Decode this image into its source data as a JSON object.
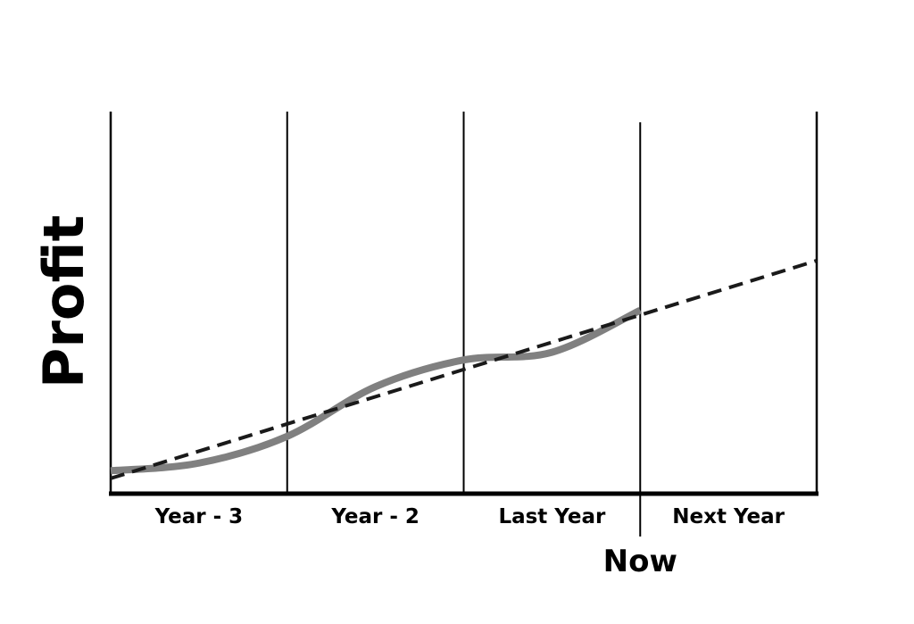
{
  "chart_data": {
    "type": "line",
    "title": "",
    "xlabel": "",
    "ylabel": "Profit",
    "categories": [
      "Year - 3",
      "Year - 2",
      "Last Year",
      "Next Year"
    ],
    "x_range": [
      0,
      4
    ],
    "now_marker": {
      "x": 3,
      "label": "Now"
    },
    "grid": "vertical dividers between periods",
    "series": [
      {
        "style": "solid",
        "color": "#808080",
        "points": [
          {
            "x": 0.0,
            "y": 0.06
          },
          {
            "x": 0.5,
            "y": 0.08
          },
          {
            "x": 1.0,
            "y": 0.15
          },
          {
            "x": 1.5,
            "y": 0.28
          },
          {
            "x": 2.0,
            "y": 0.35
          },
          {
            "x": 2.5,
            "y": 0.37
          },
          {
            "x": 3.0,
            "y": 0.48
          }
        ]
      },
      {
        "style": "dashed",
        "color": "#1a1a1a",
        "points": [
          {
            "x": 0.0,
            "y": 0.04
          },
          {
            "x": 4.0,
            "y": 0.61
          }
        ]
      }
    ]
  }
}
